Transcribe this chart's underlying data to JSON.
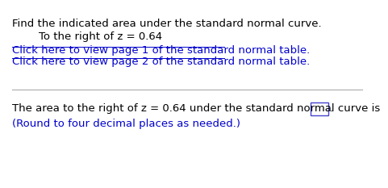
{
  "line1": "Find the indicated area under the standard normal curve.",
  "line2": "To the right of z = 0.64",
  "link1": "Click here to view page 1 of the standard normal table.",
  "link2": "Click here to view page 2 of the standard normal table.",
  "bottom_line": "The area to the right of z = 0.64 under the standard normal curve is",
  "bottom_note": "(Round to four decimal places as needed.)",
  "text_color": "#000000",
  "link_color": "#0000CC",
  "bg_color": "#ffffff",
  "divider_color": "#aaaaaa",
  "box_color": "#4444CC",
  "font_size_main": 9.5,
  "font_size_link": 9.5,
  "font_size_bottom": 9.5,
  "font_size_note": 9.5
}
